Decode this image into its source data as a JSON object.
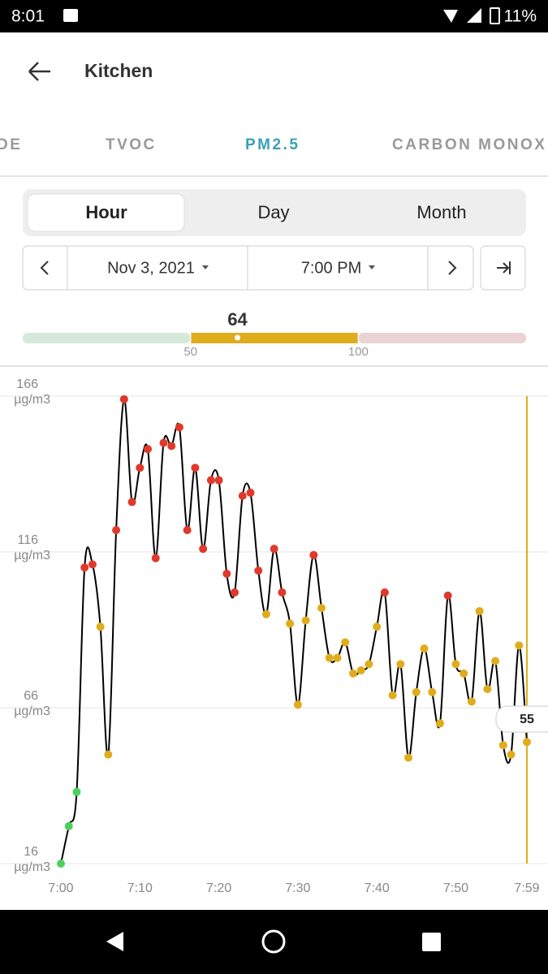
{
  "status_bar": {
    "time": "8:01",
    "battery": "11%"
  },
  "app_bar": {
    "title": "Kitchen"
  },
  "tabs": [
    "DE",
    "TVOC",
    "PM2.5",
    "CARBON MONOX"
  ],
  "range_tabs": [
    "Hour",
    "Day",
    "Month"
  ],
  "date": "Nov 3, 2021",
  "time": "7:00 PM",
  "chart_data": {
    "type": "line",
    "gauge": {
      "value": 64,
      "lim": [
        0,
        150
      ],
      "ticks": [
        50,
        100
      ],
      "colors": [
        "#d5e9da",
        "#e0ac1c",
        "#ead3d4"
      ]
    },
    "point_colors": [
      "#4cd05c",
      "#e0ac1c",
      "#e0392b"
    ],
    "line_color": "#000000",
    "cursor_color": "#e0ac1c",
    "y_unit": "µg/m3",
    "x": [
      0,
      1,
      2,
      3,
      4,
      5,
      6,
      7,
      8,
      9,
      10,
      11,
      12,
      13,
      14,
      15,
      16,
      17,
      18,
      19,
      20,
      21,
      22,
      23,
      24,
      25,
      26,
      27,
      28,
      29,
      30,
      31,
      32,
      33,
      34,
      35,
      36,
      37,
      38,
      39,
      40,
      41,
      42,
      43,
      44,
      45,
      46,
      47,
      48,
      49,
      50,
      51,
      52,
      53,
      54,
      55,
      56,
      57,
      58,
      59
    ],
    "values": [
      16,
      28,
      39,
      111,
      112,
      92,
      51,
      123,
      165,
      132,
      143,
      149,
      114,
      151,
      150,
      156,
      123,
      143,
      117,
      139,
      139,
      109,
      103,
      134,
      135,
      110,
      96,
      117,
      103,
      93,
      67,
      94,
      115,
      98,
      82,
      82,
      87,
      77,
      78,
      80,
      92,
      103,
      70,
      80,
      50,
      71,
      85,
      71,
      61,
      102,
      80,
      77,
      68,
      97,
      72,
      81,
      54,
      51,
      86,
      55
    ],
    "xlim": [
      0,
      59
    ],
    "ylim": [
      16,
      166
    ],
    "xticks": [
      {
        "value": 0,
        "label": "7:00"
      },
      {
        "value": 10,
        "label": "7:10"
      },
      {
        "value": 20,
        "label": "7:20"
      },
      {
        "value": 30,
        "label": "7:30"
      },
      {
        "value": 40,
        "label": "7:40"
      },
      {
        "value": 50,
        "label": "7:50"
      },
      {
        "value": 59,
        "label": "7:59"
      }
    ],
    "yticks": [
      16,
      66,
      116,
      166
    ],
    "grid": true
  }
}
